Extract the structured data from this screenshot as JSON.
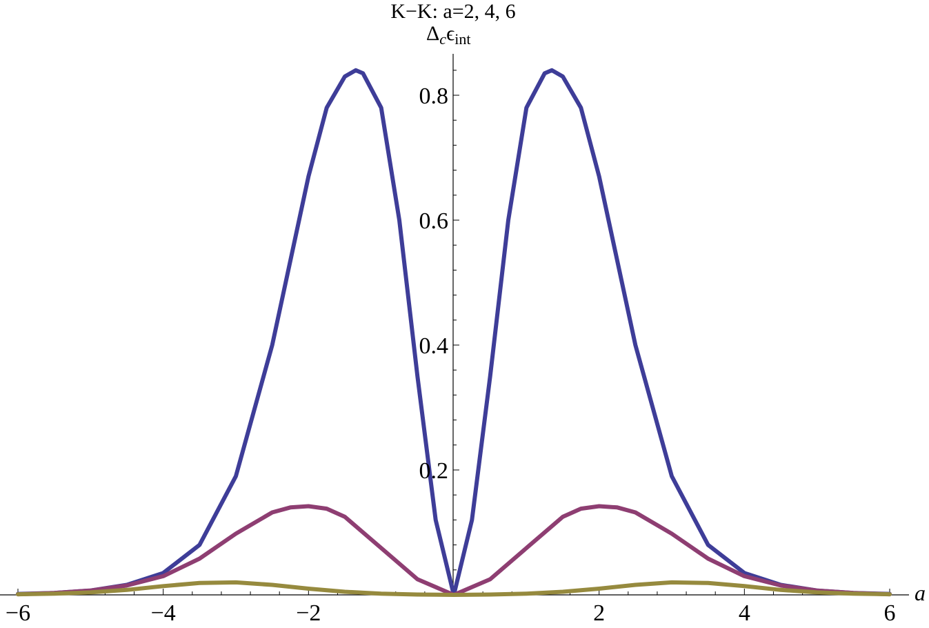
{
  "chart_data": {
    "type": "line",
    "title": "K−K: a=2, 4, 6",
    "ylabel": {
      "base": "Δ",
      "base_sub": "c",
      "main": "ϵ",
      "main_sub": "int"
    },
    "xlabel": "a",
    "xlim": [
      -6,
      6
    ],
    "ylim": [
      0,
      0.86
    ],
    "x_ticks": [
      {
        "value": -6,
        "label": "−6"
      },
      {
        "value": -4,
        "label": "−4"
      },
      {
        "value": -2,
        "label": "−2"
      },
      {
        "value": 2,
        "label": "2"
      },
      {
        "value": 4,
        "label": "4"
      },
      {
        "value": 6,
        "label": "6"
      }
    ],
    "y_ticks": [
      {
        "value": 0.2,
        "label": "0.2"
      },
      {
        "value": 0.4,
        "label": "0.4"
      },
      {
        "value": 0.6,
        "label": "0.6"
      },
      {
        "value": 0.8,
        "label": "0.8"
      }
    ],
    "grid": false,
    "series": [
      {
        "color": "#3e3d98",
        "x": [
          -6,
          -5.5,
          -5,
          -4.5,
          -4,
          -3.5,
          -3,
          -2.5,
          -2,
          -1.75,
          -1.5,
          -1.35,
          -1.25,
          -1,
          -0.75,
          -0.5,
          -0.25,
          0,
          0.25,
          0.5,
          0.75,
          1,
          1.25,
          1.35,
          1.5,
          1.75,
          2,
          2.5,
          3,
          3.5,
          4,
          4.5,
          5,
          5.5,
          6
        ],
        "y": [
          0.0015,
          0.003,
          0.007,
          0.016,
          0.035,
          0.08,
          0.19,
          0.4,
          0.67,
          0.78,
          0.83,
          0.84,
          0.835,
          0.78,
          0.6,
          0.35,
          0.12,
          0.0,
          0.12,
          0.35,
          0.6,
          0.78,
          0.835,
          0.84,
          0.83,
          0.78,
          0.67,
          0.4,
          0.19,
          0.08,
          0.035,
          0.016,
          0.007,
          0.003,
          0.0015
        ]
      },
      {
        "color": "#8e3e72",
        "x": [
          -6,
          -5.5,
          -5,
          -4.5,
          -4,
          -3.5,
          -3,
          -2.5,
          -2.25,
          -2,
          -1.75,
          -1.5,
          -1,
          -0.5,
          0,
          0.5,
          1,
          1.5,
          1.75,
          2,
          2.25,
          2.5,
          3,
          3.5,
          4,
          4.5,
          5,
          5.5,
          6
        ],
        "y": [
          0.001,
          0.003,
          0.007,
          0.015,
          0.03,
          0.058,
          0.098,
          0.132,
          0.14,
          0.142,
          0.138,
          0.125,
          0.075,
          0.025,
          0.0,
          0.025,
          0.075,
          0.125,
          0.138,
          0.142,
          0.14,
          0.132,
          0.098,
          0.058,
          0.03,
          0.015,
          0.007,
          0.003,
          0.001
        ]
      },
      {
        "color": "#968a3e",
        "x": [
          -6,
          -5.5,
          -5,
          -4.5,
          -4,
          -3.5,
          -3,
          -2.5,
          -2,
          -1.5,
          -1,
          -0.5,
          0,
          0.5,
          1,
          1.5,
          2,
          2.5,
          3,
          3.5,
          4,
          4.5,
          5,
          5.5,
          6
        ],
        "y": [
          0.001,
          0.002,
          0.004,
          0.008,
          0.014,
          0.019,
          0.02,
          0.016,
          0.01,
          0.005,
          0.002,
          0.0005,
          0.0,
          0.0005,
          0.002,
          0.005,
          0.01,
          0.016,
          0.02,
          0.019,
          0.014,
          0.008,
          0.004,
          0.002,
          0.001
        ]
      }
    ]
  }
}
